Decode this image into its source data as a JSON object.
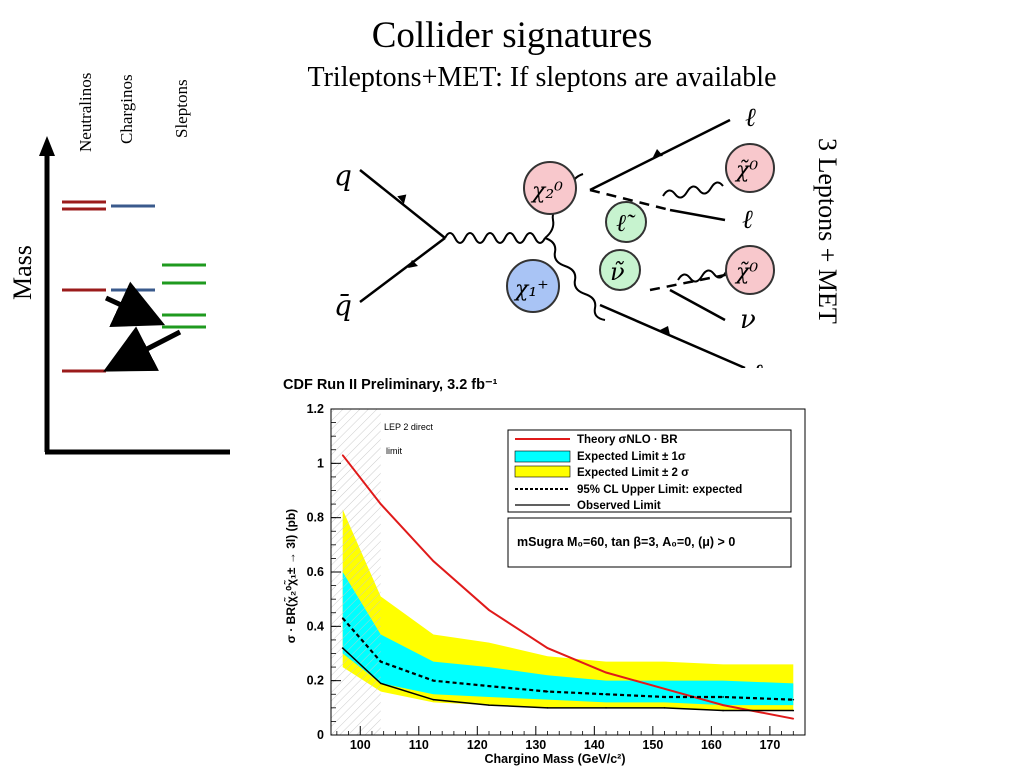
{
  "header": {
    "title": "Collider signatures",
    "subtitle": "Trileptons+MET: If sleptons are available"
  },
  "mass_diagram": {
    "axis_label": "Mass",
    "columns": [
      "Neutralinos",
      "Charginos",
      "Sleptons"
    ],
    "colors": {
      "neutralino": "#9b1b1b",
      "chargino": "#3a5a8c",
      "slepton": "#1f9a1f"
    }
  },
  "feynman": {
    "side_label": "3 Leptons + MET",
    "quark": "q",
    "antiquark": "q̄",
    "neutralino2": "χ₂⁰",
    "chargino1": "χ₁⁺",
    "slepton": "ℓ̃",
    "sneutrino": "ν̃",
    "lsp": "χ̃⁰",
    "lepton": "ℓ",
    "neutrino": "ν"
  },
  "chart_data": {
    "type": "line",
    "header": "CDF Run II Preliminary, 3.2 fb⁻¹",
    "xlabel": "Chargino Mass (GeV/c²)",
    "ylabel": "σ · BR(χ̃₂⁰χ̃₁± → 3l) (pb)",
    "xlim": [
      95,
      176
    ],
    "ylim": [
      0,
      1.2
    ],
    "xticks": [
      100,
      110,
      120,
      130,
      140,
      150,
      160,
      170
    ],
    "yticks": [
      0,
      0.2,
      0.4,
      0.6,
      0.8,
      1,
      1.2
    ],
    "lep_region": {
      "x_range": [
        95,
        103.5
      ],
      "label_line1": "LEP 2 direct",
      "label_line2": "limit"
    },
    "x": [
      97,
      103.5,
      112.5,
      122,
      132,
      142,
      152,
      162,
      174
    ],
    "series": [
      {
        "name": "Theory σNLO · BR",
        "style": "red",
        "values": [
          1.03,
          0.85,
          0.64,
          0.46,
          0.32,
          0.23,
          0.17,
          0.11,
          0.06
        ]
      },
      {
        "name": "95% CL Upper Limit: expected",
        "style": "dashed",
        "values": [
          0.43,
          0.27,
          0.2,
          0.18,
          0.16,
          0.15,
          0.14,
          0.14,
          0.13
        ]
      },
      {
        "name": "Observed Limit",
        "style": "solid",
        "values": [
          0.32,
          0.19,
          0.13,
          0.11,
          0.1,
          0.1,
          0.1,
          0.09,
          0.09
        ]
      }
    ],
    "bands": {
      "plus2": [
        0.83,
        0.51,
        0.37,
        0.34,
        0.29,
        0.27,
        0.27,
        0.26,
        0.26
      ],
      "plus1": [
        0.6,
        0.37,
        0.27,
        0.25,
        0.22,
        0.2,
        0.2,
        0.2,
        0.19
      ],
      "minus1": [
        0.3,
        0.19,
        0.15,
        0.14,
        0.13,
        0.12,
        0.12,
        0.11,
        0.11
      ],
      "minus2": [
        0.25,
        0.16,
        0.12,
        0.11,
        0.1,
        0.1,
        0.1,
        0.09,
        0.09
      ]
    },
    "legend": [
      {
        "label": "Theory σNLO · BR",
        "kind": "red-line"
      },
      {
        "label": "Expected Limit ± 1σ",
        "kind": "cyan-box"
      },
      {
        "label": "Expected Limit ± 2 σ",
        "kind": "yellow-box"
      },
      {
        "label": "95% CL Upper Limit: expected",
        "kind": "dashed-line"
      },
      {
        "label": "Observed Limit",
        "kind": "black-line"
      }
    ],
    "annotation": "mSugra M₀=60, tan β=3, A₀=0, (μ) > 0",
    "colors": {
      "theory": "#e01a1a",
      "band1": "#00ffff",
      "band2": "#ffff00"
    }
  }
}
